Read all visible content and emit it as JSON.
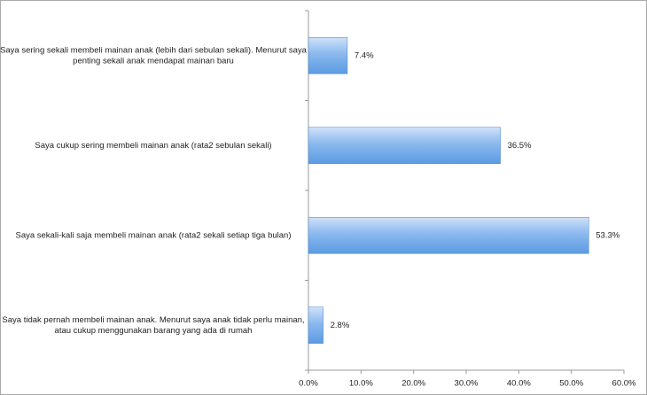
{
  "chart_data": {
    "type": "barh",
    "categories": [
      [
        "Saya sering sekali membeli mainan anak (lebih dari sebulan sekali). Menurut saya",
        "penting sekali anak mendapat mainan baru"
      ],
      [
        "Saya cukup sering membeli mainan anak (rata2 sebulan sekali)"
      ],
      [
        "Saya sekali-kali saja membeli mainan anak (rata2 sekali setiap tiga bulan)"
      ],
      [
        "Saya tidak pernah membeli mainan anak. Menurut saya anak tidak perlu mainan,",
        "atau cukup menggunakan barang yang ada di rumah"
      ]
    ],
    "values": [
      7.4,
      36.5,
      53.3,
      2.8
    ],
    "value_labels": [
      "7.4%",
      "36.5%",
      "53.3%",
      "2.8%"
    ],
    "color": "#5b9be2",
    "xlim": [
      0,
      60
    ],
    "xticks": [
      {
        "value": 0,
        "label": "0.0%"
      },
      {
        "value": 10,
        "label": "10.0%"
      },
      {
        "value": 20,
        "label": "20.0%"
      },
      {
        "value": 30,
        "label": "30.0%"
      },
      {
        "value": 40,
        "label": "40.0%"
      },
      {
        "value": 50,
        "label": "50.0%"
      },
      {
        "value": 60,
        "label": "60.0%"
      }
    ],
    "grid": false
  }
}
